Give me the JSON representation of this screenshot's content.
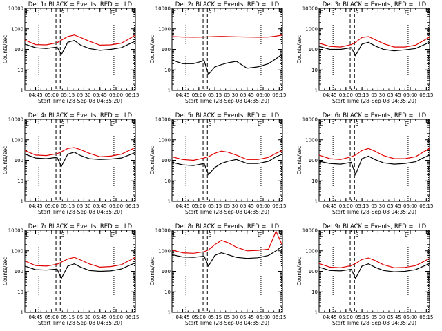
{
  "colors": {
    "events": "#000000",
    "lld": "#e00000",
    "axis": "#000000",
    "background": "#ffffff"
  },
  "shared": {
    "xlabel": "Start Time (28-Sep-08 04:35:20)",
    "ylabel": "Counts/sec",
    "x_ticks": [
      "04:45",
      "05:00",
      "05:15",
      "05:30",
      "05:45",
      "06:00",
      "06:15"
    ],
    "y_ticks": [
      "1",
      "10",
      "100",
      "1000",
      "10000"
    ]
  },
  "chart_data": [
    {
      "type": "line",
      "title": "Det 1r  BLACK = Events, RED = LLD",
      "x_range": [
        "04:35",
        "06:18"
      ],
      "y_range": [
        1,
        10000
      ],
      "y_scale": "log",
      "x": [
        "04:35",
        "04:45",
        "04:55",
        "05:05",
        "05:09",
        "05:15",
        "05:21",
        "05:27",
        "05:35",
        "05:45",
        "05:55",
        "06:05",
        "06:12",
        "06:18"
      ],
      "series": [
        {
          "name": "Events",
          "color": "#000000",
          "values": [
            180,
            120,
            110,
            130,
            55,
            220,
            270,
            160,
            110,
            90,
            100,
            120,
            180,
            250
          ]
        },
        {
          "name": "LLD",
          "color": "#e00000",
          "values": [
            280,
            170,
            165,
            210,
            280,
            420,
            500,
            380,
            250,
            160,
            165,
            200,
            320,
            500
          ]
        }
      ],
      "markers": [
        {
          "label": "E",
          "time": "04:35"
        },
        {
          "label": "S",
          "time": "05:08"
        },
        {
          "label": "E",
          "time": "05:54"
        }
      ],
      "dotted_lines": [
        "04:48",
        "05:58",
        "06:17"
      ],
      "dashed_lines": [
        "05:04",
        "05:08"
      ]
    },
    {
      "type": "line",
      "title": "Det 2r  BLACK = Events, RED = LLD",
      "x_range": [
        "04:35",
        "06:18"
      ],
      "y_range": [
        1,
        10000
      ],
      "y_scale": "log",
      "x": [
        "04:35",
        "04:45",
        "04:55",
        "05:05",
        "05:09",
        "05:15",
        "05:21",
        "05:27",
        "05:35",
        "05:45",
        "05:55",
        "06:05",
        "06:12",
        "06:18"
      ],
      "series": [
        {
          "name": "Events",
          "color": "#000000",
          "values": [
            30,
            20,
            20,
            28,
            6,
            14,
            18,
            22,
            26,
            12,
            14,
            20,
            35,
            60
          ]
        },
        {
          "name": "LLD",
          "color": "#e00000",
          "values": [
            420,
            400,
            390,
            400,
            410,
            420,
            430,
            420,
            410,
            400,
            390,
            400,
            440,
            500
          ]
        }
      ],
      "markers": [
        {
          "label": "E",
          "time": "04:35"
        },
        {
          "label": "S",
          "time": "05:08"
        },
        {
          "label": "E",
          "time": "05:54"
        }
      ],
      "dotted_lines": [
        "04:48",
        "05:58",
        "06:17"
      ],
      "dashed_lines": [
        "05:04",
        "05:08"
      ]
    },
    {
      "type": "line",
      "title": "Det 3r  BLACK = Events, RED = LLD",
      "x_range": [
        "04:35",
        "06:18"
      ],
      "y_range": [
        1,
        10000
      ],
      "y_scale": "log",
      "x": [
        "04:35",
        "04:45",
        "04:55",
        "05:05",
        "05:09",
        "05:15",
        "05:21",
        "05:27",
        "05:35",
        "05:45",
        "05:55",
        "06:05",
        "06:12",
        "06:18"
      ],
      "series": [
        {
          "name": "Events",
          "color": "#000000",
          "values": [
            140,
            100,
            100,
            120,
            50,
            180,
            220,
            150,
            100,
            85,
            95,
            110,
            160,
            220
          ]
        },
        {
          "name": "LLD",
          "color": "#e00000",
          "values": [
            200,
            140,
            130,
            170,
            220,
            380,
            420,
            300,
            190,
            130,
            130,
            160,
            260,
            400
          ]
        }
      ],
      "markers": [
        {
          "label": "E",
          "time": "04:35"
        },
        {
          "label": "S",
          "time": "05:08"
        },
        {
          "label": "E",
          "time": "05:54"
        }
      ],
      "dotted_lines": [
        "04:48",
        "05:58",
        "06:17"
      ],
      "dashed_lines": [
        "05:04",
        "05:08"
      ]
    },
    {
      "type": "line",
      "title": "Det 4r  BLACK = Events, RED = LLD",
      "x_range": [
        "04:35",
        "06:18"
      ],
      "y_range": [
        1,
        10000
      ],
      "y_scale": "log",
      "x": [
        "04:35",
        "04:45",
        "04:55",
        "05:05",
        "05:09",
        "05:15",
        "05:21",
        "05:27",
        "05:35",
        "05:45",
        "05:55",
        "06:05",
        "06:12",
        "06:18"
      ],
      "series": [
        {
          "name": "Events",
          "color": "#000000",
          "values": [
            200,
            130,
            120,
            140,
            50,
            200,
            250,
            170,
            120,
            110,
            115,
            130,
            180,
            240
          ]
        },
        {
          "name": "LLD",
          "color": "#e00000",
          "values": [
            300,
            180,
            170,
            210,
            260,
            380,
            420,
            330,
            220,
            150,
            160,
            200,
            300,
            420
          ]
        }
      ],
      "markers": [
        {
          "label": "E",
          "time": "04:35"
        },
        {
          "label": "S",
          "time": "05:08"
        },
        {
          "label": "E",
          "time": "05:54"
        }
      ],
      "dotted_lines": [
        "04:48",
        "05:58",
        "06:17"
      ],
      "dashed_lines": [
        "05:04",
        "05:08"
      ]
    },
    {
      "type": "line",
      "title": "Det 5r  BLACK = Events, RED = LLD",
      "x_range": [
        "04:35",
        "06:18"
      ],
      "y_range": [
        1,
        10000
      ],
      "y_scale": "log",
      "x": [
        "04:35",
        "04:45",
        "04:55",
        "05:05",
        "05:09",
        "05:15",
        "05:21",
        "05:27",
        "05:35",
        "05:45",
        "05:55",
        "06:05",
        "06:12",
        "06:18"
      ],
      "series": [
        {
          "name": "Events",
          "color": "#000000",
          "values": [
            80,
            60,
            55,
            70,
            20,
            45,
            70,
            90,
            110,
            70,
            70,
            90,
            150,
            200
          ]
        },
        {
          "name": "LLD",
          "color": "#e00000",
          "values": [
            150,
            110,
            100,
            130,
            150,
            220,
            280,
            250,
            180,
            110,
            110,
            140,
            220,
            300
          ]
        }
      ],
      "markers": [
        {
          "label": "E",
          "time": "04:35"
        },
        {
          "label": "S",
          "time": "05:08"
        },
        {
          "label": "E",
          "time": "05:54"
        }
      ],
      "dotted_lines": [
        "04:48",
        "05:58",
        "06:17"
      ],
      "dashed_lines": [
        "05:04",
        "05:08"
      ]
    },
    {
      "type": "line",
      "title": "Det 6r  BLACK = Events, RED = LLD",
      "x_range": [
        "04:35",
        "06:18"
      ],
      "y_range": [
        1,
        10000
      ],
      "y_scale": "log",
      "x": [
        "04:35",
        "04:45",
        "04:55",
        "05:05",
        "05:09",
        "05:15",
        "05:21",
        "05:27",
        "05:35",
        "05:45",
        "05:55",
        "06:05",
        "06:12",
        "06:18"
      ],
      "series": [
        {
          "name": "Events",
          "color": "#000000",
          "values": [
            90,
            70,
            65,
            80,
            20,
            120,
            160,
            110,
            75,
            65,
            70,
            85,
            130,
            180
          ]
        },
        {
          "name": "LLD",
          "color": "#e00000",
          "values": [
            180,
            120,
            110,
            150,
            180,
            300,
            380,
            280,
            170,
            120,
            120,
            150,
            250,
            380
          ]
        }
      ],
      "markers": [
        {
          "label": "E",
          "time": "04:35"
        },
        {
          "label": "S",
          "time": "05:08"
        },
        {
          "label": "E",
          "time": "05:54"
        }
      ],
      "dotted_lines": [
        "04:48",
        "05:58",
        "06:17"
      ],
      "dashed_lines": [
        "05:04",
        "05:08"
      ]
    },
    {
      "type": "line",
      "title": "Det 7r  BLACK = Events, RED = LLD",
      "x_range": [
        "04:35",
        "06:18"
      ],
      "y_range": [
        1,
        10000
      ],
      "y_scale": "log",
      "x": [
        "04:35",
        "04:45",
        "04:55",
        "05:05",
        "05:09",
        "05:15",
        "05:21",
        "05:27",
        "05:35",
        "05:45",
        "05:55",
        "06:05",
        "06:12",
        "06:18"
      ],
      "series": [
        {
          "name": "Events",
          "color": "#000000",
          "values": [
            180,
            120,
            115,
            130,
            45,
            180,
            230,
            160,
            110,
            100,
            105,
            130,
            190,
            260
          ]
        },
        {
          "name": "LLD",
          "color": "#e00000",
          "values": [
            320,
            190,
            180,
            220,
            280,
            400,
            480,
            360,
            230,
            160,
            170,
            210,
            330,
            480
          ]
        }
      ],
      "markers": [
        {
          "label": "E",
          "time": "04:35"
        },
        {
          "label": "S",
          "time": "05:08"
        },
        {
          "label": "E",
          "time": "05:54"
        }
      ],
      "dotted_lines": [
        "04:48",
        "05:58",
        "06:17"
      ],
      "dashed_lines": [
        "05:04",
        "05:08"
      ]
    },
    {
      "type": "line",
      "title": "Det 8r  BLACK = Events, RED = LLD",
      "x_range": [
        "04:35",
        "06:18"
      ],
      "y_range": [
        1,
        10000
      ],
      "y_scale": "log",
      "x": [
        "04:35",
        "04:45",
        "04:55",
        "05:05",
        "05:09",
        "05:15",
        "05:21",
        "05:27",
        "05:35",
        "05:45",
        "05:55",
        "06:05",
        "06:12",
        "06:18"
      ],
      "series": [
        {
          "name": "Events",
          "color": "#000000",
          "values": [
            650,
            500,
            480,
            550,
            180,
            600,
            800,
            650,
            480,
            430,
            460,
            600,
            1000,
            1700
          ]
        },
        {
          "name": "LLD",
          "color": "#e00000",
          "values": [
            1100,
            800,
            760,
            900,
            1100,
            2000,
            3200,
            2500,
            1500,
            1000,
            1050,
            1200,
            9000,
            1800
          ]
        }
      ],
      "markers": [
        {
          "label": "E",
          "time": "04:35"
        },
        {
          "label": "S",
          "time": "05:08"
        },
        {
          "label": "E",
          "time": "05:54"
        }
      ],
      "dotted_lines": [
        "04:48",
        "05:58",
        "06:17"
      ],
      "dashed_lines": [
        "05:04",
        "05:08"
      ]
    },
    {
      "type": "line",
      "title": "Det 9r  BLACK = Events, RED = LLD",
      "x_range": [
        "04:35",
        "06:18"
      ],
      "y_range": [
        1,
        10000
      ],
      "y_scale": "log",
      "x": [
        "04:35",
        "04:45",
        "04:55",
        "05:05",
        "05:09",
        "05:15",
        "05:21",
        "05:27",
        "05:35",
        "05:45",
        "05:55",
        "06:05",
        "06:12",
        "06:18"
      ],
      "series": [
        {
          "name": "Events",
          "color": "#000000",
          "values": [
            160,
            110,
            105,
            125,
            45,
            180,
            230,
            160,
            110,
            95,
            100,
            120,
            175,
            240
          ]
        },
        {
          "name": "LLD",
          "color": "#e00000",
          "values": [
            240,
            160,
            150,
            190,
            240,
            380,
            450,
            340,
            210,
            150,
            155,
            190,
            290,
            430
          ]
        }
      ],
      "markers": [
        {
          "label": "E",
          "time": "04:35"
        },
        {
          "label": "S",
          "time": "05:08"
        },
        {
          "label": "E",
          "time": "05:54"
        }
      ],
      "dotted_lines": [
        "04:48",
        "05:58",
        "06:17"
      ],
      "dashed_lines": [
        "05:04",
        "05:08"
      ]
    }
  ]
}
